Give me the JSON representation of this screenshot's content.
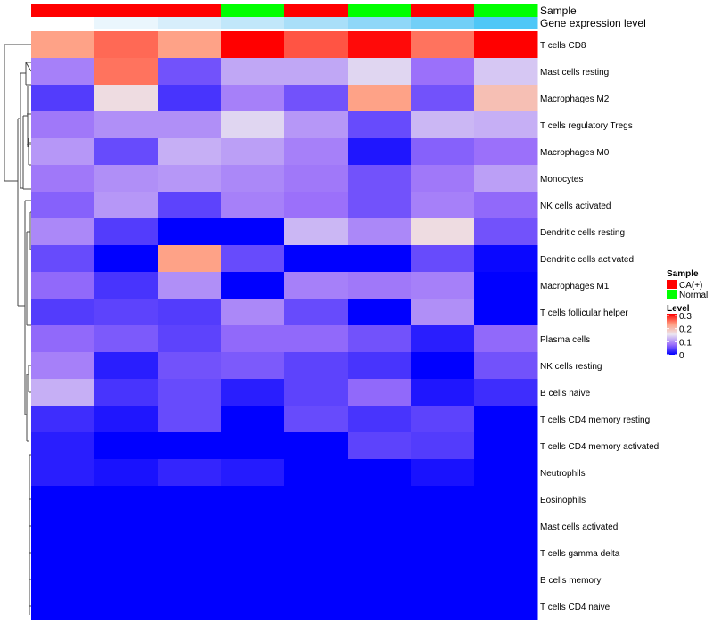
{
  "chart_data": {
    "type": "heatmap",
    "title": "",
    "annotation_rows": [
      {
        "name": "Sample",
        "values": [
          "CA(+)",
          "CA(+)",
          "CA(+)",
          "Normal",
          "CA(+)",
          "Normal",
          "CA(+)",
          "Normal"
        ]
      },
      {
        "name": "Gene expression level",
        "values": [
          1,
          2,
          3,
          4,
          5,
          6,
          7,
          8
        ]
      }
    ],
    "annotation_colors": {
      "Sample": {
        "CA(+)": "#ff0000",
        "Normal": "#00ff00"
      },
      "Gene expression level": [
        "#ffffff",
        "#eaf6fd",
        "#d7eefb",
        "#c1e7fa",
        "#a9dff9",
        "#8fd7f8",
        "#71cff7",
        "#4ec7f7"
      ]
    },
    "rows": [
      "T cells CD8",
      "Mast cells resting",
      "Macrophages M2",
      "T cells regulatory  Tregs",
      "Macrophages M0",
      "Monocytes",
      "NK cells activated",
      "Dendritic cells resting",
      "Dendritic cells activated",
      "Macrophages M1",
      "T cells follicular helper",
      "Plasma cells",
      "NK cells resting",
      "B cells naive",
      "T cells CD4 memory resting",
      "T cells CD4 memory activated",
      "Neutrophils",
      "Eosinophils",
      "Mast cells activated",
      "T cells gamma delta",
      "B cells memory",
      "T cells CD4 naive"
    ],
    "values": [
      [
        0.22,
        0.25,
        0.22,
        0.3,
        0.26,
        0.295,
        0.245,
        0.3
      ],
      [
        0.085,
        0.245,
        0.055,
        0.11,
        0.11,
        0.14,
        0.075,
        0.13
      ],
      [
        0.04,
        0.16,
        0.035,
        0.085,
        0.055,
        0.22,
        0.055,
        0.19
      ],
      [
        0.08,
        0.095,
        0.095,
        0.14,
        0.1,
        0.05,
        0.12,
        0.115
      ],
      [
        0.1,
        0.05,
        0.115,
        0.105,
        0.085,
        0.015,
        0.065,
        0.075
      ],
      [
        0.08,
        0.095,
        0.1,
        0.09,
        0.08,
        0.055,
        0.08,
        0.105
      ],
      [
        0.065,
        0.1,
        0.045,
        0.085,
        0.075,
        0.055,
        0.085,
        0.07
      ],
      [
        0.09,
        0.04,
        0.0,
        0.0,
        0.12,
        0.09,
        0.16,
        0.055
      ],
      [
        0.05,
        0.0,
        0.22,
        0.05,
        0.0,
        0.0,
        0.05,
        0.005
      ],
      [
        0.07,
        0.035,
        0.095,
        0.0,
        0.085,
        0.08,
        0.085,
        0.0
      ],
      [
        0.04,
        0.045,
        0.04,
        0.09,
        0.05,
        0.0,
        0.095,
        0.0
      ],
      [
        0.07,
        0.06,
        0.045,
        0.07,
        0.07,
        0.055,
        0.02,
        0.07
      ],
      [
        0.085,
        0.02,
        0.055,
        0.06,
        0.045,
        0.035,
        0.0,
        0.055
      ],
      [
        0.115,
        0.035,
        0.05,
        0.02,
        0.045,
        0.07,
        0.015,
        0.03
      ],
      [
        0.03,
        0.015,
        0.05,
        0.0,
        0.05,
        0.035,
        0.045,
        0.0
      ],
      [
        0.02,
        0.0,
        0.0,
        0.0,
        0.0,
        0.045,
        0.04,
        0.0
      ],
      [
        0.02,
        0.012,
        0.025,
        0.018,
        0.0,
        0.0,
        0.012,
        0.0
      ],
      [
        0,
        0,
        0,
        0,
        0,
        0,
        0,
        0
      ],
      [
        0,
        0,
        0,
        0,
        0,
        0,
        0,
        0
      ],
      [
        0,
        0,
        0,
        0,
        0,
        0,
        0,
        0
      ],
      [
        0,
        0,
        0,
        0,
        0,
        0,
        0,
        0
      ],
      [
        0,
        0,
        0,
        0,
        0,
        0,
        0,
        0
      ]
    ],
    "color_scale": {
      "min": 0,
      "max": 0.3,
      "colors": [
        "#0000ff",
        "#9b70fa",
        "#ebe6f0",
        "#ff9d80",
        "#ff0000"
      ]
    },
    "legend": {
      "sample_title": "Sample",
      "sample_items": [
        "CA(+)",
        "Normal"
      ],
      "level_title": "Level",
      "level_ticks": [
        "0.3",
        "0.2",
        "0.1",
        "0"
      ],
      "level_tick_values": [
        0.3,
        0.2,
        0.1,
        0
      ],
      "placement": "right"
    }
  }
}
